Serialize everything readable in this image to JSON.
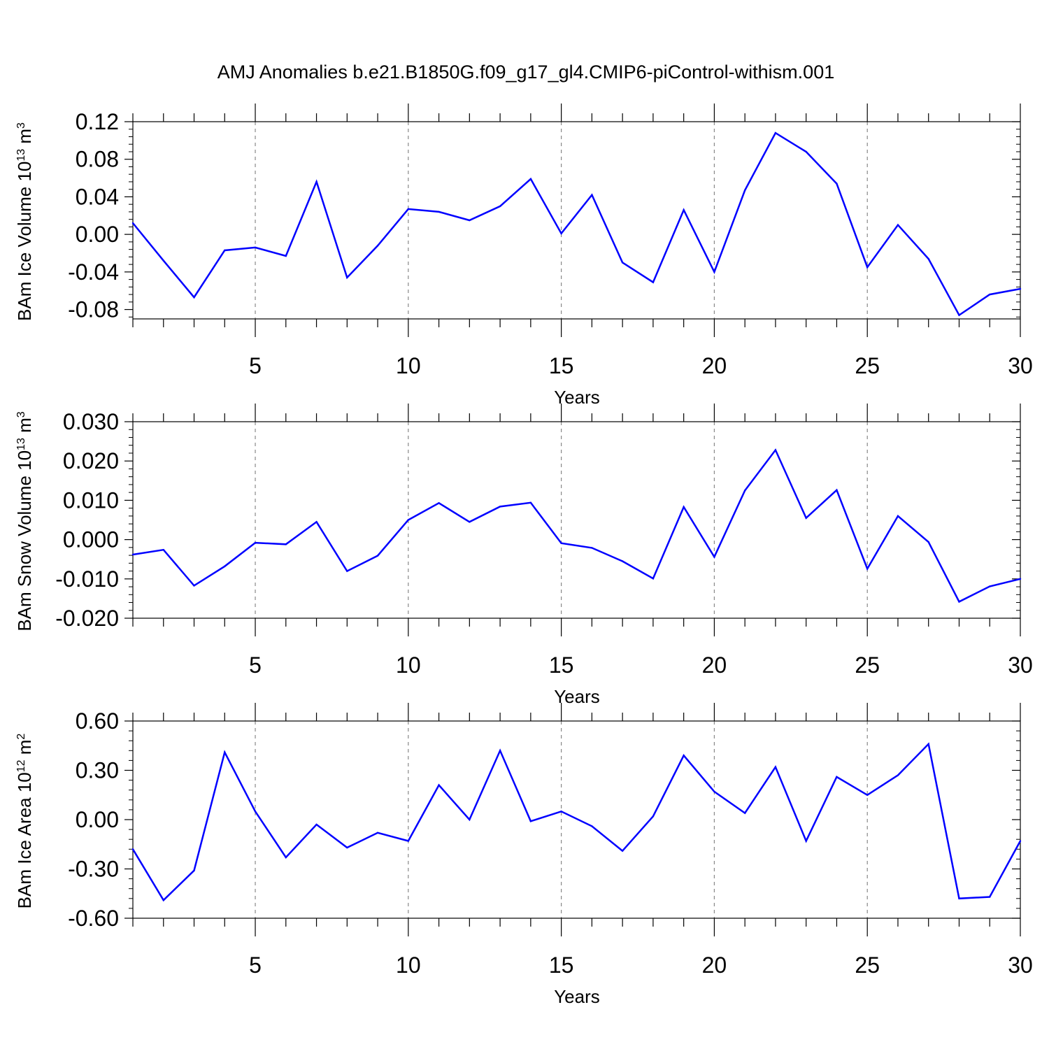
{
  "figure": {
    "title": "AMJ Anomalies b.e21.B1850G.f09_g17_gl4.CMIP6-piControl-withism.001",
    "line_color": "#0000ff",
    "grid_color": "#888888"
  },
  "chart_data": [
    {
      "type": "line",
      "xlabel": "Years",
      "ylabel": {
        "prefix": "BAm Ice Volume 10",
        "exponent": "13",
        "unit": " m",
        "unit_exponent": "3"
      },
      "xlim": [
        1,
        30
      ],
      "ylim": [
        -0.09,
        0.12
      ],
      "xticks": [
        5,
        10,
        15,
        20,
        25,
        30
      ],
      "xtick_labels": [
        "5",
        "10",
        "15",
        "20",
        "25",
        "30"
      ],
      "yticks": [
        -0.08,
        -0.04,
        0.0,
        0.04,
        0.08,
        0.12
      ],
      "ytick_labels": [
        "-0.08",
        "-0.04",
        "0.00",
        "0.04",
        "0.08",
        "0.12"
      ],
      "grid": "vertical dashed at major x ticks",
      "x": [
        1,
        2,
        3,
        4,
        5,
        6,
        7,
        8,
        9,
        10,
        11,
        12,
        13,
        14,
        15,
        16,
        17,
        18,
        19,
        20,
        21,
        22,
        23,
        24,
        25,
        26,
        27,
        28,
        29,
        30
      ],
      "series": [
        {
          "values": [
            0.012,
            -0.028,
            -0.067,
            -0.017,
            -0.014,
            -0.023,
            0.056,
            -0.046,
            -0.012,
            0.027,
            0.024,
            0.015,
            0.03,
            0.059,
            0.001,
            0.042,
            -0.03,
            -0.051,
            0.026,
            -0.04,
            0.047,
            0.108,
            0.088,
            0.054,
            -0.035,
            0.01,
            -0.026,
            -0.086,
            -0.064,
            -0.058
          ]
        }
      ]
    },
    {
      "type": "line",
      "xlabel": "Years",
      "ylabel": {
        "prefix": "BAm Snow Volume 10",
        "exponent": "13",
        "unit": " m",
        "unit_exponent": "3"
      },
      "xlim": [
        1,
        30
      ],
      "ylim": [
        -0.02,
        0.03
      ],
      "xticks": [
        5,
        10,
        15,
        20,
        25,
        30
      ],
      "xtick_labels": [
        "5",
        "10",
        "15",
        "20",
        "25",
        "30"
      ],
      "yticks": [
        -0.02,
        -0.01,
        0.0,
        0.01,
        0.02,
        0.03
      ],
      "ytick_labels": [
        "-0.020",
        "-0.010",
        "0.000",
        "0.010",
        "0.020",
        "0.030"
      ],
      "grid": "vertical dashed at major x ticks",
      "x": [
        1,
        2,
        3,
        4,
        5,
        6,
        7,
        8,
        9,
        10,
        11,
        12,
        13,
        14,
        15,
        16,
        17,
        18,
        19,
        20,
        21,
        22,
        23,
        24,
        25,
        26,
        27,
        28,
        29,
        30
      ],
      "series": [
        {
          "values": [
            -0.0038,
            -0.0026,
            -0.0117,
            -0.0068,
            -0.0008,
            -0.0012,
            0.0045,
            -0.008,
            -0.0041,
            0.005,
            0.0093,
            0.0045,
            0.0084,
            0.0094,
            -0.0009,
            -0.0021,
            -0.0055,
            -0.0099,
            0.0083,
            -0.0044,
            0.0125,
            0.0228,
            0.0055,
            0.0126,
            -0.0074,
            0.006,
            -0.0006,
            -0.0158,
            -0.0119,
            -0.01
          ]
        }
      ]
    },
    {
      "type": "line",
      "xlabel": "Years",
      "ylabel": {
        "prefix": "BAm Ice Area 10",
        "exponent": "12",
        "unit": " m",
        "unit_exponent": "2"
      },
      "xlim": [
        1,
        30
      ],
      "ylim": [
        -0.6,
        0.6
      ],
      "xticks": [
        5,
        10,
        15,
        20,
        25,
        30
      ],
      "xtick_labels": [
        "5",
        "10",
        "15",
        "20",
        "25",
        "30"
      ],
      "yticks": [
        -0.6,
        -0.3,
        0.0,
        0.3,
        0.6
      ],
      "ytick_labels": [
        "-0.60",
        "-0.30",
        "0.00",
        "0.30",
        "0.60"
      ],
      "grid": "vertical dashed at major x ticks",
      "x": [
        1,
        2,
        3,
        4,
        5,
        6,
        7,
        8,
        9,
        10,
        11,
        12,
        13,
        14,
        15,
        16,
        17,
        18,
        19,
        20,
        21,
        22,
        23,
        24,
        25,
        26,
        27,
        28,
        29,
        30
      ],
      "series": [
        {
          "values": [
            -0.18,
            -0.49,
            -0.31,
            0.41,
            0.05,
            -0.23,
            -0.03,
            -0.17,
            -0.08,
            -0.13,
            0.21,
            0.0,
            0.42,
            -0.01,
            0.05,
            -0.04,
            -0.19,
            0.02,
            0.39,
            0.17,
            0.04,
            0.32,
            -0.13,
            0.26,
            0.15,
            0.27,
            0.46,
            -0.48,
            -0.47,
            -0.13
          ]
        }
      ]
    }
  ]
}
